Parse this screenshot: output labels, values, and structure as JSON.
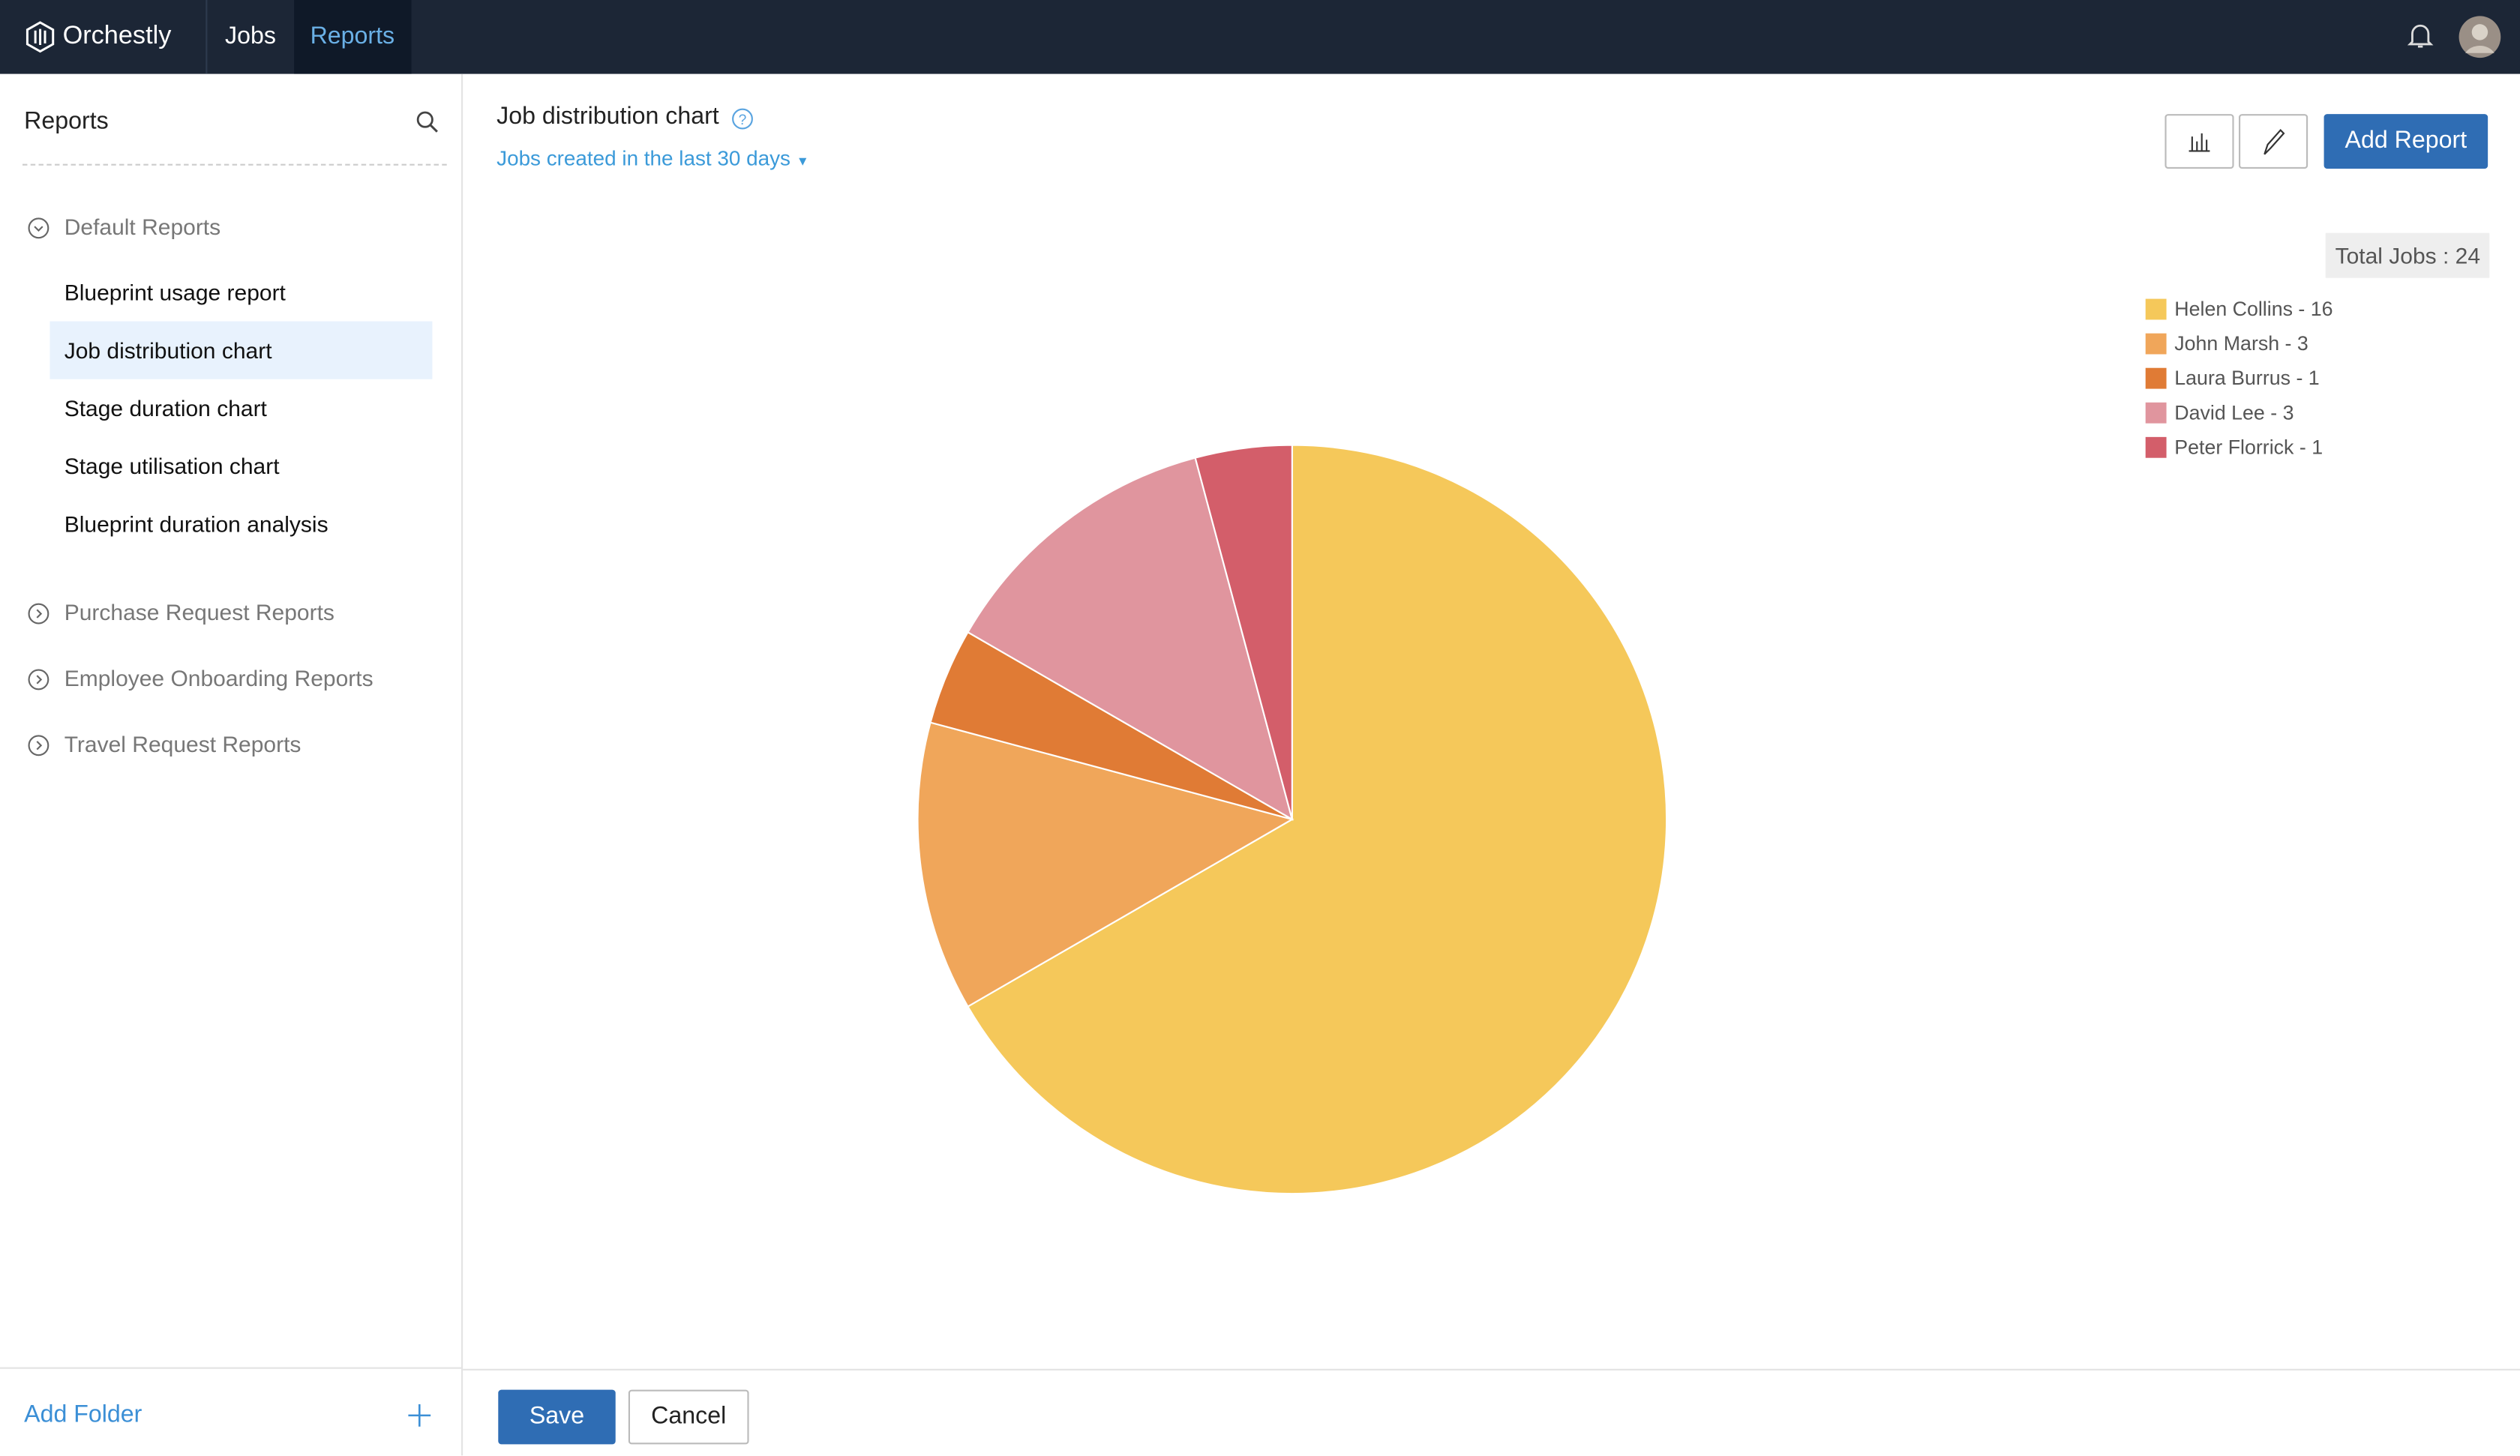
{
  "nav": {
    "brand": "Orchestly",
    "tabs": [
      "Jobs",
      "Reports"
    ]
  },
  "sidebar": {
    "title": "Reports",
    "folders": [
      {
        "name": "Default Reports",
        "items": [
          "Blueprint usage report",
          "Job distribution chart",
          "Stage duration chart",
          "Stage utilisation chart",
          "Blueprint duration analysis"
        ]
      },
      {
        "name": "Purchase Request Reports",
        "items": []
      },
      {
        "name": "Employee Onboarding Reports",
        "items": []
      },
      {
        "name": "Travel Request Reports",
        "items": []
      }
    ],
    "add_folder": "Add Folder"
  },
  "report": {
    "title": "Job distribution chart",
    "filter": "Jobs created in the last 30 days",
    "add_button": "Add Report",
    "save": "Save",
    "cancel": "Cancel"
  },
  "chart_data": {
    "type": "pie",
    "total_label": "Total Jobs : 24",
    "categories": [
      "Helen Collins - 16",
      "John Marsh - 3",
      "Laura Burrus - 1",
      "David Lee - 3",
      "Peter Florrick - 1"
    ],
    "values": [
      16,
      3,
      1,
      3,
      1
    ],
    "colors": [
      "#f5c85a",
      "#f0a65a",
      "#e07b35",
      "#e0959e",
      "#d35e6a"
    ]
  }
}
